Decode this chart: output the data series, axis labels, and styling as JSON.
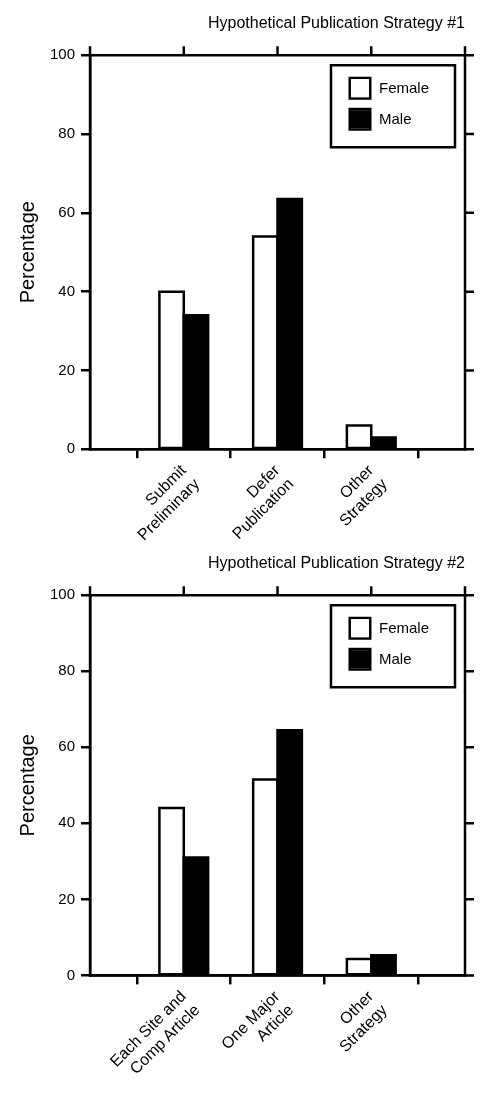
{
  "chart_data": [
    {
      "type": "bar",
      "title": "Hypothetical Publication Strategy #1",
      "ylabel": "Percentage",
      "categories": [
        "Submit\nPreliminary",
        "Defer\nPublication",
        "Other\nStrategy"
      ],
      "series": [
        {
          "name": "Female",
          "color": "#ffffff",
          "values": [
            40,
            54,
            6
          ]
        },
        {
          "name": "Male",
          "color": "#000000",
          "values": [
            34,
            63.5,
            3
          ]
        }
      ],
      "ylim": [
        0,
        100
      ],
      "yticks": [
        0,
        20,
        40,
        60,
        80,
        100
      ],
      "grid": false,
      "legend": "top right"
    },
    {
      "type": "bar",
      "title": "Hypothetical Publication Strategy #2",
      "ylabel": "Percentage",
      "categories": [
        "Each Site and\nComp Article",
        "One Major\nArticle",
        "Other\nStrategy"
      ],
      "series": [
        {
          "name": "Female",
          "color": "#ffffff",
          "values": [
            44,
            51.5,
            4.3
          ]
        },
        {
          "name": "Male",
          "color": "#000000",
          "values": [
            31,
            64.5,
            5.3
          ]
        }
      ],
      "ylim": [
        0,
        100
      ],
      "yticks": [
        0,
        20,
        40,
        60,
        80,
        100
      ],
      "grid": false,
      "legend": "top right"
    }
  ]
}
